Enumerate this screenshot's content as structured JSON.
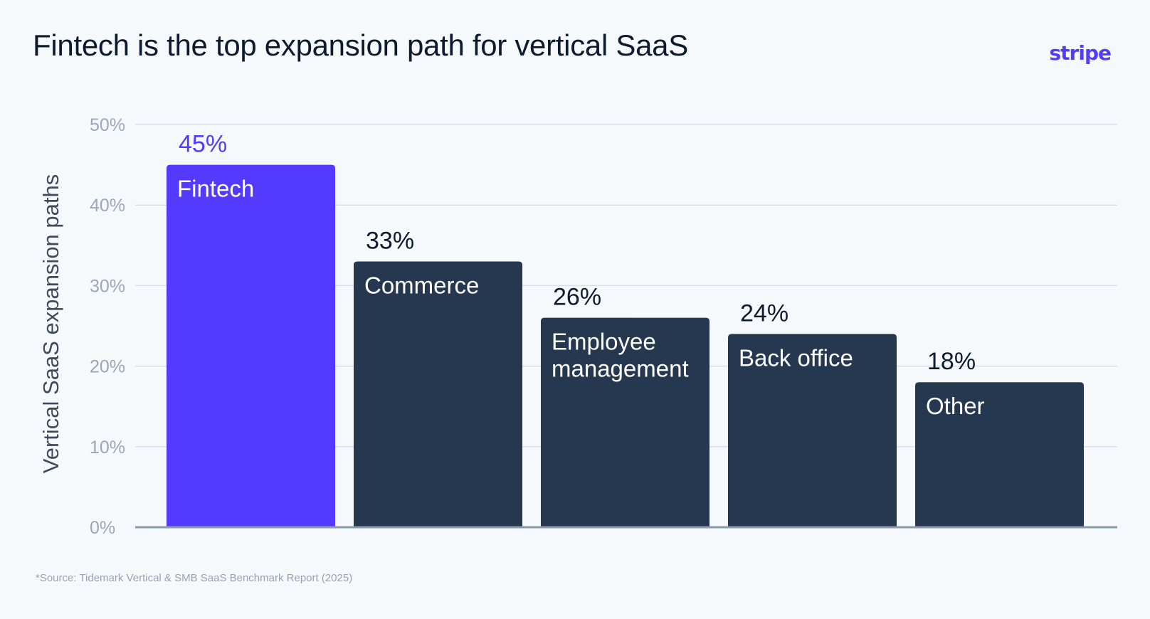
{
  "header": {
    "title": "Fintech is the top expansion path for vertical SaaS",
    "logo_text": "stripe"
  },
  "footer": {
    "source": "*Source: Tidemark Vertical & SMB SaaS Benchmark Report (2025)"
  },
  "colors": {
    "accent": "#533afd",
    "bar": "#263850",
    "background": "#f6f9fc",
    "grid": "#d9dfe7",
    "baseline": "#8d99ab"
  },
  "chart_data": {
    "type": "bar",
    "ylabel": "Vertical SaaS expansion paths",
    "ylim": [
      0,
      50
    ],
    "yticks": [
      "0%",
      "10%",
      "20%",
      "30%",
      "40%",
      "50%"
    ],
    "ytick_values": [
      0,
      10,
      20,
      30,
      40,
      50
    ],
    "grid": true,
    "categories": [
      [
        "Fintech"
      ],
      [
        "Commerce"
      ],
      [
        "Employee",
        "management"
      ],
      [
        "Back office"
      ],
      [
        "Other"
      ]
    ],
    "values": [
      45,
      33,
      26,
      24,
      18
    ],
    "value_labels": [
      "45%",
      "33%",
      "26%",
      "24%",
      "18%"
    ],
    "highlight_index": 0
  }
}
